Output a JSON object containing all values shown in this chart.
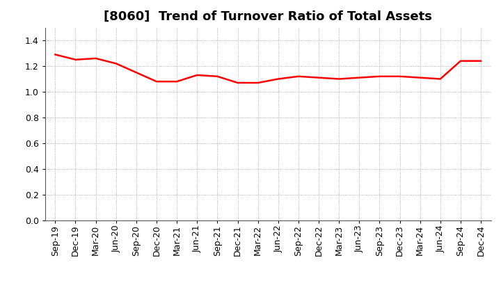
{
  "title": "[8060]  Trend of Turnover Ratio of Total Assets",
  "x_labels": [
    "Sep-19",
    "Dec-19",
    "Mar-20",
    "Jun-20",
    "Sep-20",
    "Dec-20",
    "Mar-21",
    "Jun-21",
    "Sep-21",
    "Dec-21",
    "Mar-22",
    "Jun-22",
    "Sep-22",
    "Dec-22",
    "Mar-23",
    "Jun-23",
    "Sep-23",
    "Dec-23",
    "Mar-24",
    "Jun-24",
    "Sep-24",
    "Dec-24"
  ],
  "values": [
    1.29,
    1.25,
    1.26,
    1.22,
    1.15,
    1.08,
    1.08,
    1.13,
    1.12,
    1.07,
    1.07,
    1.1,
    1.12,
    1.11,
    1.1,
    1.11,
    1.12,
    1.12,
    1.11,
    1.1,
    1.24,
    1.24
  ],
  "ylim": [
    0.0,
    1.5
  ],
  "yticks": [
    0.0,
    0.2,
    0.4,
    0.6,
    0.8,
    1.0,
    1.2,
    1.4
  ],
  "line_color": "#ff0000",
  "line_width": 1.8,
  "background_color": "#ffffff",
  "grid_color": "#999999",
  "title_fontsize": 13,
  "tick_fontsize": 9
}
